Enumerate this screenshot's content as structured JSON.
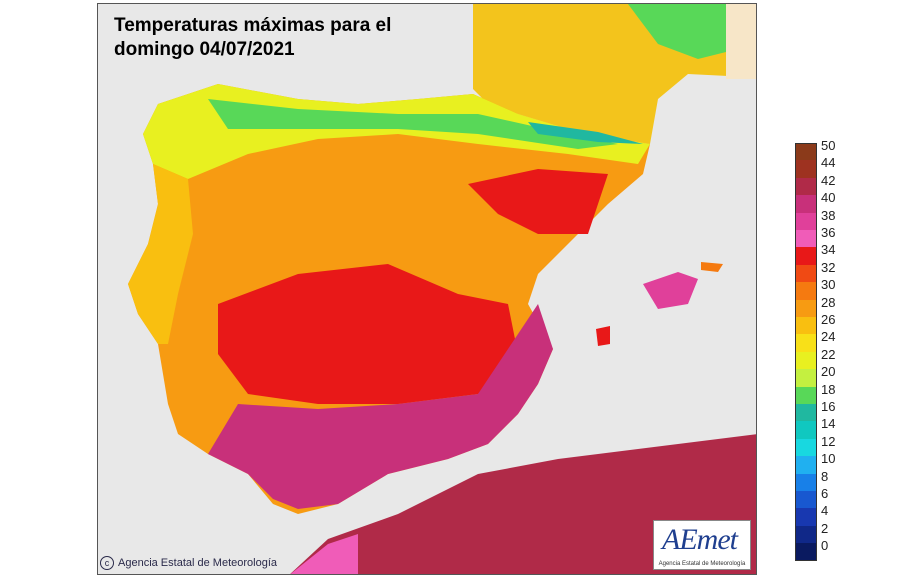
{
  "title": "Temperaturas máximas para el\ndomingo 04/07/2021",
  "copyright": "Agencia Estatal de Meteorología",
  "logo": {
    "brand": "AEmet",
    "subtitle": "Agencia Estatal de Meteorología"
  },
  "legend": {
    "labels": [
      "50",
      "44",
      "42",
      "40",
      "38",
      "36",
      "34",
      "32",
      "30",
      "28",
      "26",
      "24",
      "22",
      "20",
      "18",
      "16",
      "14",
      "12",
      "10",
      "8",
      "6",
      "4",
      "2",
      "0"
    ],
    "colors": [
      "#8b3a1a",
      "#9e3220",
      "#b02a48",
      "#c8307a",
      "#e0409a",
      "#f05cb8",
      "#e81818",
      "#f04a14",
      "#f57a10",
      "#f79b12",
      "#f9bf10",
      "#f8e018",
      "#e8f020",
      "#c4f040",
      "#58d858",
      "#20b8a0",
      "#10c8c0",
      "#18d8e0",
      "#20b0f0",
      "#1880e8",
      "#1858d0",
      "#1838b0",
      "#102888",
      "#0a1a60"
    ]
  }
}
